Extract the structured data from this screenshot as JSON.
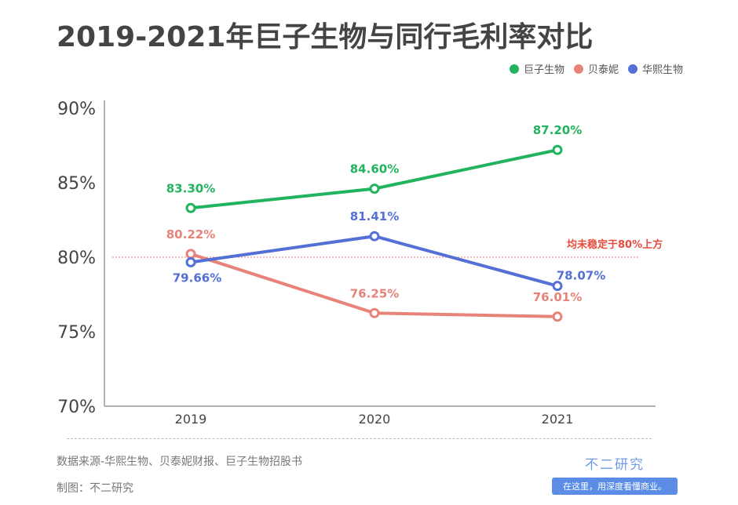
{
  "title": "2019-2021年巨子生物与同行毛利率对比",
  "chart_data": {
    "type": "line",
    "title": "2019-2021年巨子生物与同行毛利率对比",
    "categories": [
      "2019",
      "2020",
      "2021"
    ],
    "ylim": [
      70,
      90
    ],
    "yticks": [
      "70%",
      "75%",
      "80%",
      "85%",
      "90%"
    ],
    "grid": false,
    "legend": "top-right",
    "series": [
      {
        "name": "巨子生物",
        "color": "#22b35e",
        "values": [
          83.3,
          84.6,
          87.2
        ],
        "labels": [
          "83.30%",
          "84.60%",
          "87.20%"
        ]
      },
      {
        "name": "贝泰妮",
        "color": "#e8837a",
        "values": [
          80.22,
          76.25,
          76.01
        ],
        "labels": [
          "80.22%",
          "76.25%",
          "76.01%"
        ]
      },
      {
        "name": "华熙生物",
        "color": "#5470d6",
        "values": [
          79.66,
          81.41,
          78.07
        ],
        "labels": [
          "79.66%",
          "81.41%",
          "78.07%"
        ]
      }
    ],
    "reference_line": {
      "value": 80,
      "color": "#e84c3d",
      "label": "均未稳定于80%上方"
    }
  },
  "footer": {
    "source": "数据来源-华熙生物、贝泰妮财报、巨子生物招股书",
    "maker": "制图：不二研究"
  },
  "brand": {
    "name": "不二研究",
    "slogan": "在这里，用深度看懂商业。"
  }
}
